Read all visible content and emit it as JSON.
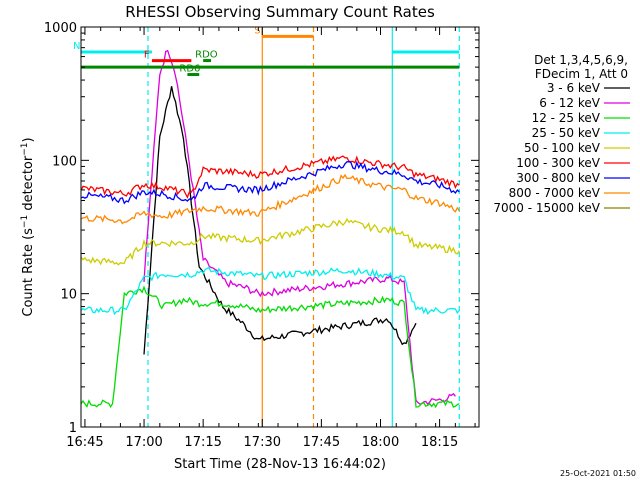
{
  "chart_data": {
    "type": "line",
    "title": "RHESSI Observing Summary Count Rates",
    "xlabel": "Start Time (28-Nov-13 16:44:02)",
    "ylabel": "Count Rate (s⁻¹ detector⁻¹)",
    "ylabel_base": "Count Rate (s",
    "ylabel_sup": "−1",
    "ylabel_mid": " detector",
    "ylabel_end": ")",
    "y_scale": "log",
    "ylim": [
      1,
      1000
    ],
    "xlim": [
      "16:44",
      "18:25"
    ],
    "y_ticks": [
      "1",
      "10",
      "100",
      "1000"
    ],
    "x_ticks": [
      "16:45",
      "17:00",
      "17:15",
      "17:30",
      "17:45",
      "18:00",
      "18:15"
    ],
    "legend_header": [
      "Det 1,3,4,5,6,9,",
      "FDecim 1, Att 0"
    ],
    "legend_position": "right",
    "timestamp": "25-Oct-2021 01:50",
    "series": [
      {
        "name": "3 - 6 keV",
        "color": "#000000",
        "x": [
          "17:00",
          "17:04",
          "17:07",
          "17:10",
          "17:14",
          "17:20",
          "17:25",
          "17:29",
          "18:02",
          "18:06",
          "18:09"
        ],
        "values": [
          3.5,
          150,
          360,
          150,
          16,
          8,
          6,
          4.5,
          6.5,
          4.2,
          6
        ]
      },
      {
        "name": "6 - 12 keV",
        "color": "#dd00dd",
        "x": [
          "17:00",
          "17:04",
          "17:06",
          "17:08",
          "17:11",
          "17:15",
          "17:21",
          "17:26",
          "17:29",
          "18:02",
          "18:06",
          "18:09",
          "18:15",
          "18:19"
        ],
        "values": [
          13,
          450,
          700,
          450,
          120,
          18,
          12,
          11,
          10,
          13,
          12,
          1.5,
          1.6,
          1.7
        ]
      },
      {
        "name": "12 - 25 keV",
        "color": "#00dd00",
        "x": [
          "16:44",
          "16:52",
          "16:55",
          "17:00",
          "17:05",
          "17:10",
          "17:14",
          "17:20",
          "17:25",
          "17:29",
          "18:02",
          "18:06",
          "18:09",
          "18:20"
        ],
        "values": [
          1.5,
          1.5,
          10,
          11,
          8,
          9,
          8.5,
          8.5,
          8,
          7.5,
          9,
          8.5,
          1.5,
          1.5
        ]
      },
      {
        "name": "25 - 50 keV",
        "color": "#00eeee",
        "x": [
          "16:44",
          "16:55",
          "17:00",
          "17:05",
          "17:12",
          "17:15",
          "17:20",
          "17:25",
          "17:29",
          "17:51",
          "18:00",
          "18:06",
          "18:09",
          "18:15",
          "18:20"
        ],
        "values": [
          7.5,
          7.5,
          13,
          14,
          14,
          15,
          14.5,
          14,
          13.5,
          15,
          14,
          13,
          7.5,
          7.5,
          7.5
        ]
      },
      {
        "name": "50 - 100 keV",
        "color": "#cccc00",
        "x": [
          "16:44",
          "16:55",
          "17:00",
          "17:06",
          "17:12",
          "17:15",
          "17:22",
          "17:29",
          "17:51",
          "17:56",
          "18:02",
          "18:06",
          "18:09",
          "18:15",
          "18:20"
        ],
        "values": [
          18,
          17,
          24,
          24,
          24,
          27,
          26,
          25,
          35,
          32,
          30,
          29,
          23,
          22,
          21
        ]
      },
      {
        "name": "100 - 300 keV",
        "color": "#ff0000",
        "x": [
          "16:44",
          "16:52",
          "16:55",
          "17:00",
          "17:05",
          "17:12",
          "17:15",
          "17:22",
          "17:29",
          "17:51",
          "17:56",
          "18:02",
          "18:06",
          "18:09",
          "18:15",
          "18:20"
        ],
        "values": [
          62,
          58,
          56,
          66,
          63,
          55,
          85,
          82,
          78,
          105,
          98,
          92,
          88,
          78,
          72,
          65
        ]
      },
      {
        "name": "300 - 800 keV",
        "color": "#0000ff",
        "x": [
          "16:44",
          "16:52",
          "16:55",
          "17:00",
          "17:05",
          "17:12",
          "17:15",
          "17:22",
          "17:29",
          "17:51",
          "17:56",
          "18:02",
          "18:06",
          "18:09",
          "18:15",
          "18:20"
        ],
        "values": [
          55,
          52,
          50,
          58,
          56,
          50,
          65,
          62,
          60,
          95,
          88,
          82,
          78,
          70,
          65,
          58
        ]
      },
      {
        "name": "800 - 7000 keV",
        "color": "#ff8800",
        "x": [
          "16:44",
          "16:52",
          "16:55",
          "17:00",
          "17:05",
          "17:15",
          "17:22",
          "17:29",
          "17:51",
          "17:56",
          "18:02",
          "18:06",
          "18:09",
          "18:15",
          "18:20"
        ],
        "values": [
          37,
          36,
          35,
          40,
          38,
          44,
          42,
          40,
          75,
          68,
          62,
          60,
          52,
          48,
          42
        ]
      },
      {
        "name": "7000 - 15000 keV",
        "color": "#888800",
        "x": [],
        "values": []
      }
    ],
    "annotations": [
      {
        "label": "N",
        "color": "#00eeee",
        "x": [
          "16:44",
          "17:02"
        ],
        "level": 650
      },
      {
        "label": "F",
        "color": "#ff0000",
        "x": [
          "17:02",
          "17:12"
        ],
        "level": 560
      },
      {
        "label": "S",
        "color": "#ff8800",
        "x": [
          "17:30",
          "17:43"
        ],
        "level": 850
      },
      {
        "label": "RD6",
        "color": "#008800",
        "x": [
          "17:11",
          "17:14"
        ],
        "level": 440
      },
      {
        "label": "RDO",
        "color": "#008800",
        "x": [
          "17:15",
          "17:17"
        ],
        "level": 560
      },
      {
        "label": "",
        "color": "#00eeee",
        "x": [
          "18:03",
          "18:20"
        ],
        "level": 650
      },
      {
        "label": "",
        "color": "#008800",
        "x": [
          "16:44",
          "18:20"
        ],
        "level": 500
      }
    ],
    "vertical_markers": [
      {
        "x": "17:01",
        "color": "#00eeee",
        "style": "dashed"
      },
      {
        "x": "17:30",
        "color": "#ff8800",
        "style": "solid"
      },
      {
        "x": "17:43",
        "color": "#ff8800",
        "style": "dashed"
      },
      {
        "x": "18:03",
        "color": "#00eeee",
        "style": "solid"
      },
      {
        "x": "18:20",
        "color": "#00eeee",
        "style": "dashed"
      }
    ]
  }
}
